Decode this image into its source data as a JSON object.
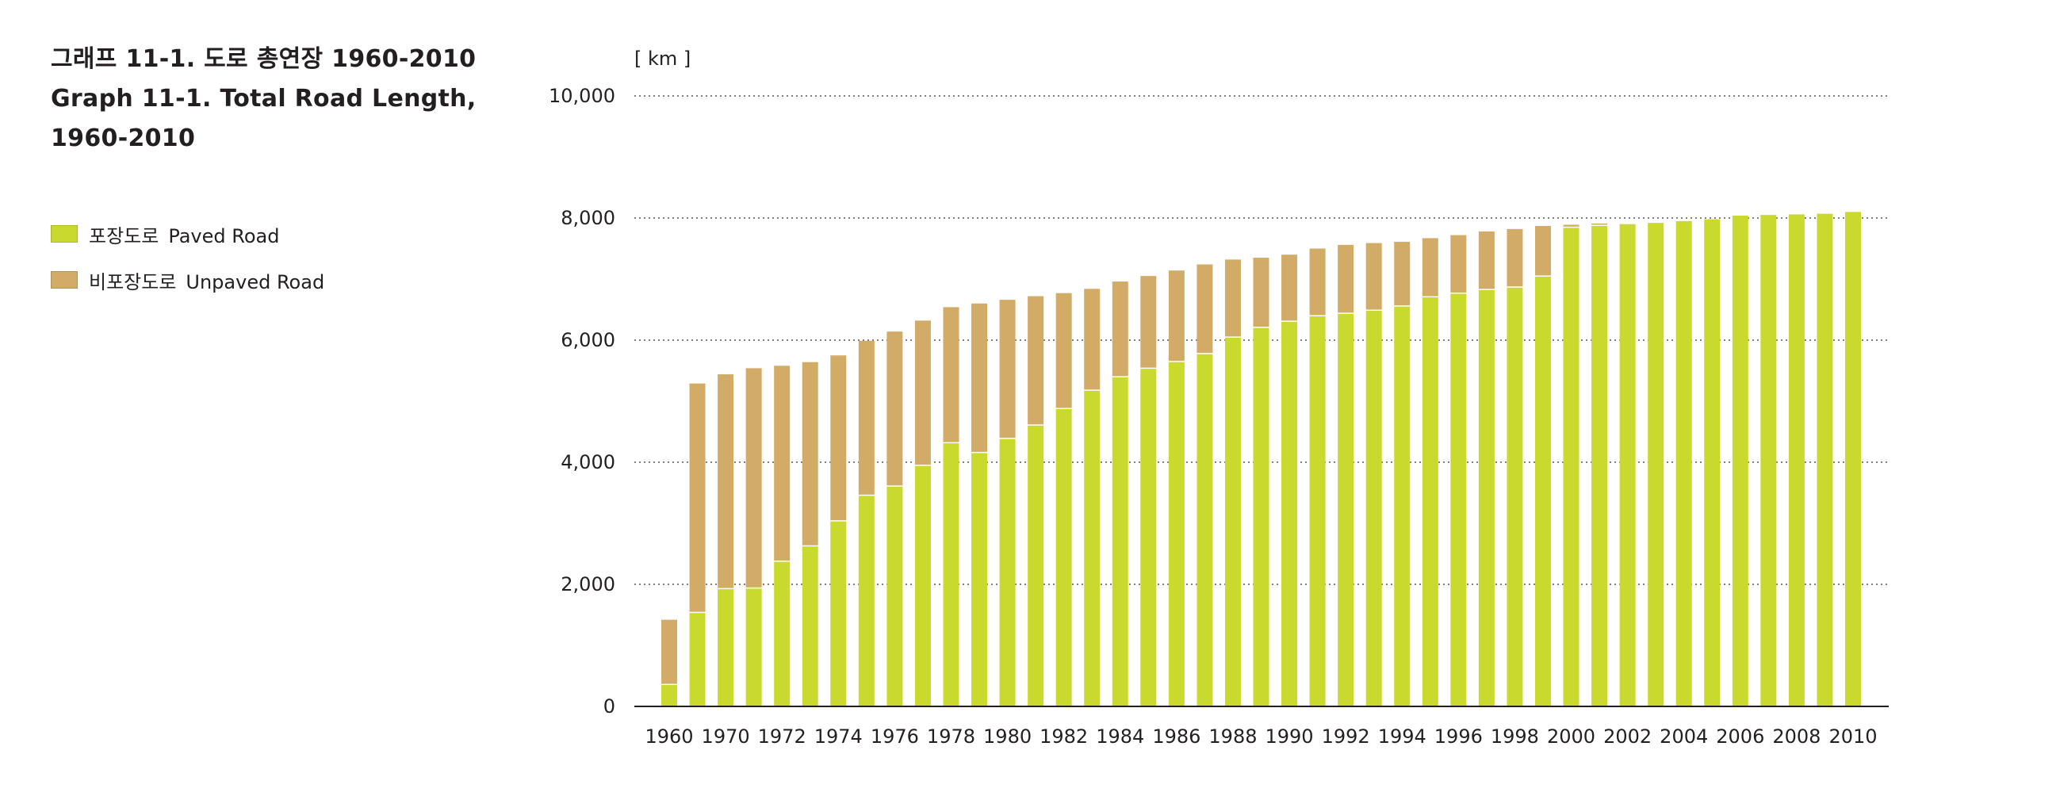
{
  "title": {
    "line1": "그래프 11-1. 도로 총연장 1960-2010",
    "line2": "Graph 11-1. Total Road Length,",
    "line3": "1960-2010"
  },
  "legend": [
    {
      "ko": "포장도로",
      "en": "Paved Road",
      "color": "#c9d92e"
    },
    {
      "ko": "비포장도로",
      "en": "Unpaved Road",
      "color": "#d2ab67"
    }
  ],
  "chart_data": {
    "type": "bar",
    "stacked": true,
    "unit_label": "[ km ]",
    "ylim": [
      0,
      10000
    ],
    "yticks": [
      0,
      2000,
      4000,
      6000,
      8000,
      10000
    ],
    "ytick_labels": [
      "0",
      "2,000",
      "4,000",
      "6,000",
      "8,000",
      "10,000"
    ],
    "grid": "dotted horizontal",
    "colors": {
      "paved": "#c9d92e",
      "unpaved": "#d2ab67"
    },
    "categories": [
      "1960",
      "1969",
      "1970",
      "1971",
      "1972",
      "1973",
      "1974",
      "1975",
      "1976",
      "1977",
      "1978",
      "1979",
      "1980",
      "1981",
      "1982",
      "1983",
      "1984",
      "1985",
      "1986",
      "1987",
      "1988",
      "1989",
      "1990",
      "1991",
      "1992",
      "1993",
      "1994",
      "1995",
      "1996",
      "1997",
      "1998",
      "1999",
      "2000",
      "2001",
      "2002",
      "2003",
      "2004",
      "2005",
      "2006",
      "2007",
      "2008",
      "2009",
      "2010"
    ],
    "xtick_labels": [
      "1960",
      "1970",
      "1972",
      "1974",
      "1976",
      "1978",
      "1980",
      "1982",
      "1984",
      "1986",
      "1988",
      "1990",
      "1992",
      "1994",
      "1996",
      "1998",
      "2000",
      "2002",
      "2004",
      "2006",
      "2008",
      "2010"
    ],
    "series": [
      {
        "name": "포장도로 Paved Road",
        "values": [
          350,
          1530,
          1920,
          1930,
          2370,
          2620,
          3030,
          3450,
          3600,
          3940,
          4310,
          4150,
          4380,
          4600,
          4870,
          5170,
          5390,
          5530,
          5640,
          5770,
          6040,
          6200,
          6300,
          6390,
          6430,
          6480,
          6550,
          6700,
          6760,
          6820,
          6860,
          7040,
          7840,
          7870,
          7900,
          7920,
          7950,
          7980,
          8040,
          8050,
          8060,
          8070,
          8100
        ]
      },
      {
        "name": "비포장도로 Unpaved Road",
        "values": [
          1070,
          3760,
          3520,
          3610,
          3210,
          3020,
          2720,
          2540,
          2540,
          2380,
          2230,
          2450,
          2280,
          2120,
          1900,
          1670,
          1570,
          1520,
          1500,
          1470,
          1280,
          1150,
          1100,
          1110,
          1130,
          1110,
          1060,
          970,
          960,
          960,
          960,
          830,
          50,
          40,
          20,
          20,
          20,
          20,
          0,
          0,
          0,
          0,
          0
        ]
      }
    ]
  }
}
